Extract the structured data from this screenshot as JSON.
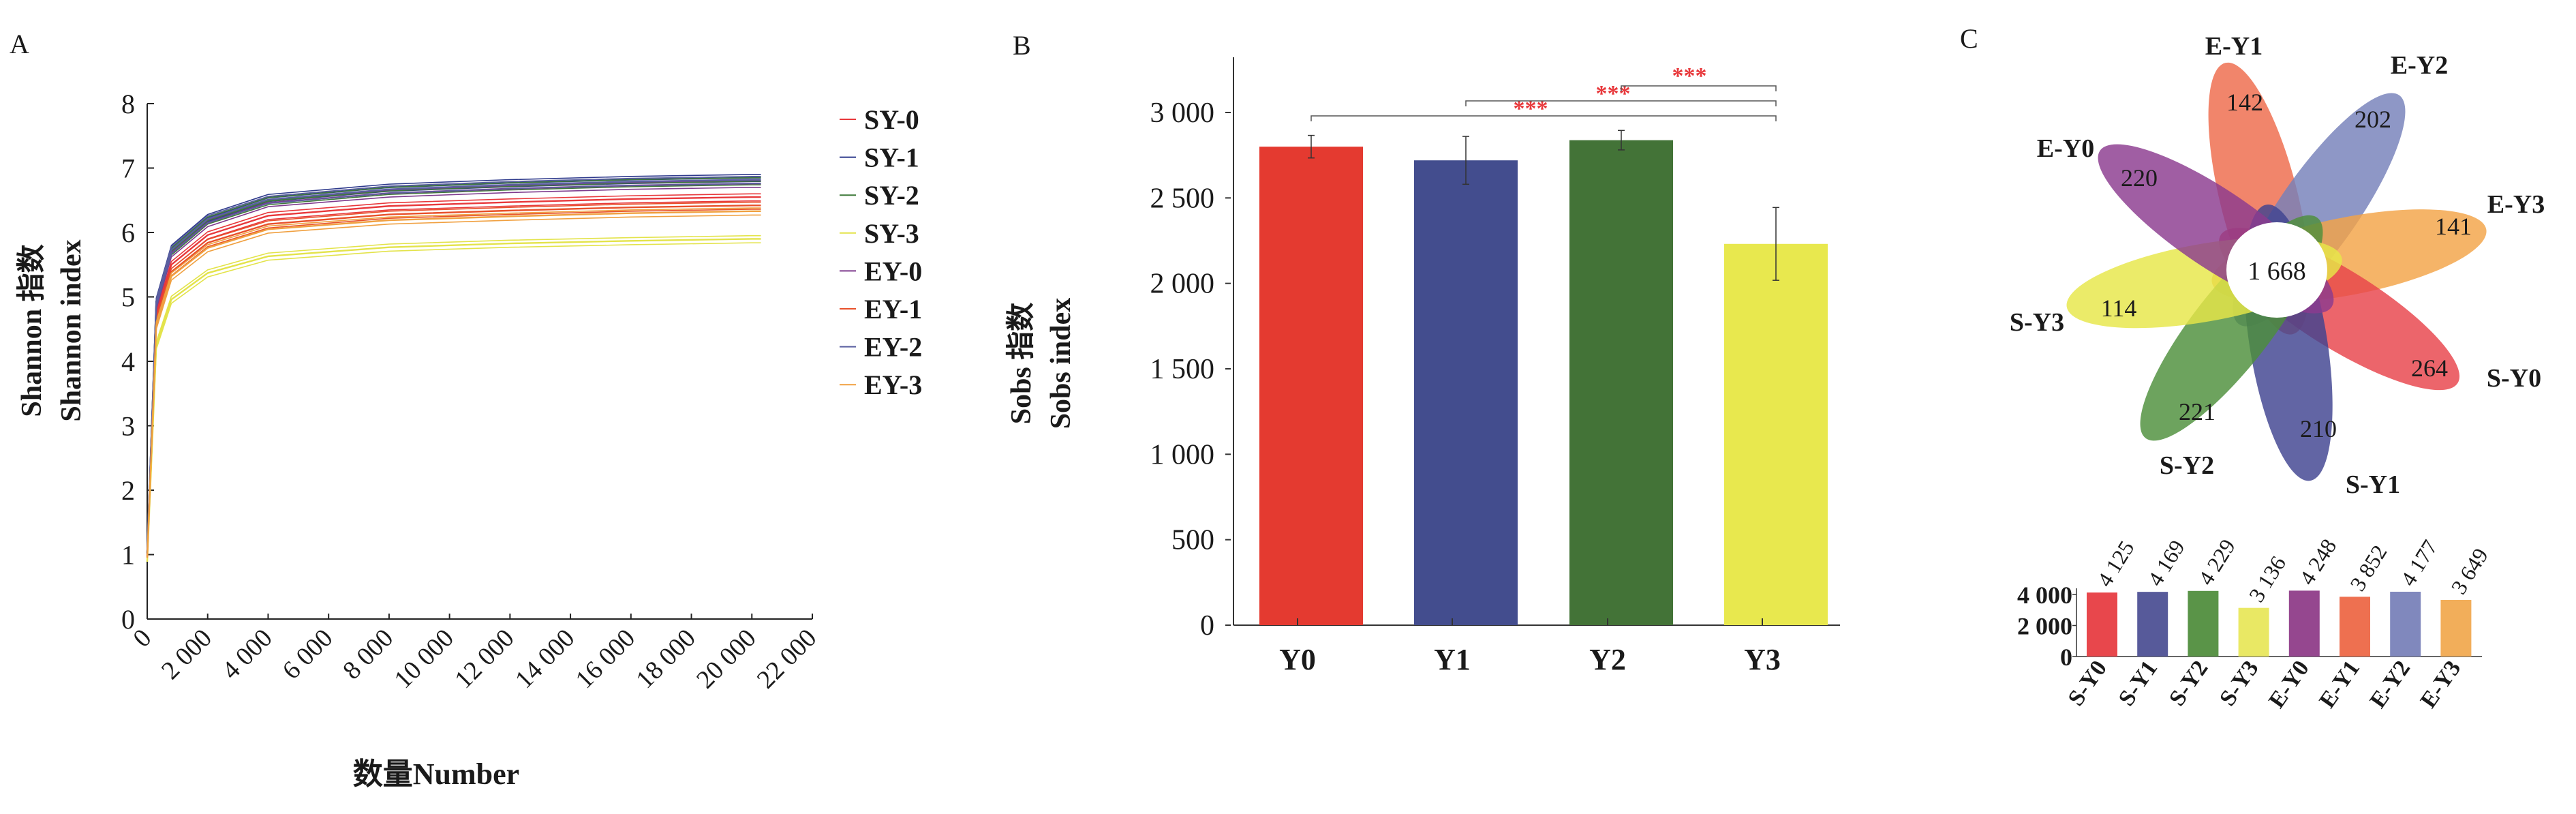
{
  "panel_labels": {
    "a": "A",
    "b": "B",
    "c": "C"
  },
  "chart_data": [
    {
      "type": "line",
      "panel": "A",
      "ylabel_cn": "Shannon 指数",
      "ylabel": "Shannon index",
      "xlabel": "数量Number",
      "xlim": [
        0,
        22000
      ],
      "ylim": [
        0,
        8
      ],
      "x_ticks": [
        0,
        2000,
        4000,
        6000,
        8000,
        10000,
        12000,
        14000,
        16000,
        18000,
        20000,
        22000
      ],
      "x_tick_labels": [
        "0",
        "2 000",
        "4 000",
        "6 000",
        "8 000",
        "10 000",
        "12 000",
        "14 000",
        "16 000",
        "18 000",
        "20 000",
        "22 000"
      ],
      "y_tick_labels": [
        "0",
        "1",
        "2",
        "3",
        "4",
        "5",
        "6",
        "7",
        "8"
      ],
      "legend_position": "right",
      "x": [
        0,
        300,
        800,
        2000,
        4000,
        8000,
        12000,
        16000,
        20000,
        20300
      ],
      "series": [
        {
          "name": "SY-0",
          "color": "#e8383b",
          "values": [
            0.98,
            4.72,
            5.5,
            5.96,
            6.26,
            6.41,
            6.47,
            6.52,
            6.55,
            6.55
          ]
        },
        {
          "name": "SY-1",
          "color": "#2e3a8c",
          "values": [
            1.03,
            4.93,
            5.75,
            6.23,
            6.54,
            6.7,
            6.77,
            6.82,
            6.85,
            6.85
          ]
        },
        {
          "name": "SY-2",
          "color": "#3f7a3a",
          "values": [
            1.02,
            4.9,
            5.71,
            6.19,
            6.49,
            6.65,
            6.72,
            6.77,
            6.8,
            6.8
          ]
        },
        {
          "name": "SY-3",
          "color": "#e3e34a",
          "values": [
            0.89,
            4.25,
            4.96,
            5.37,
            5.63,
            5.77,
            5.83,
            5.87,
            5.9,
            5.9
          ]
        },
        {
          "name": "EY-0",
          "color": "#7e3b8e",
          "values": [
            1.01,
            4.87,
            5.68,
            6.15,
            6.46,
            6.61,
            6.68,
            6.73,
            6.76,
            6.76
          ]
        },
        {
          "name": "EY-1",
          "color": "#e8502a",
          "values": [
            0.96,
            4.62,
            5.39,
            5.84,
            6.13,
            6.28,
            6.34,
            6.39,
            6.42,
            6.42
          ]
        },
        {
          "name": "EY-2",
          "color": "#5a5fa0",
          "values": [
            1.02,
            4.91,
            5.73,
            6.21,
            6.51,
            6.67,
            6.74,
            6.79,
            6.82,
            6.82
          ]
        },
        {
          "name": "EY-3",
          "color": "#f0a040",
          "values": [
            0.95,
            4.56,
            5.32,
            5.76,
            6.05,
            6.19,
            6.25,
            6.3,
            6.33,
            6.33
          ]
        }
      ]
    },
    {
      "type": "bar",
      "panel": "B",
      "ylabel_cn": "Sobs 指数",
      "ylabel": "Sobs index",
      "categories": [
        "Y0",
        "Y1",
        "Y2",
        "Y3"
      ],
      "values": [
        2800,
        2720,
        2838,
        2231
      ],
      "errors": [
        66,
        140,
        57,
        213
      ],
      "colors": [
        "#e43a30",
        "#434d8e",
        "#437337",
        "#e8e84e"
      ],
      "ylim": [
        0,
        3300
      ],
      "y_ticks": [
        0,
        500,
        1000,
        1500,
        2000,
        2500,
        3000
      ],
      "y_tick_labels": [
        "0",
        "500",
        "1 000",
        "1 500",
        "2 000",
        "2 500",
        "3 000"
      ],
      "significance": [
        {
          "from": "Y0",
          "to": "Y3",
          "label": "***"
        },
        {
          "from": "Y1",
          "to": "Y3",
          "label": "***"
        },
        {
          "from": "Y2",
          "to": "Y3",
          "label": "***"
        }
      ],
      "significance_color": "#e8383b"
    },
    {
      "type": "venn-flower",
      "panel": "C",
      "core_value": "1 668",
      "petals": [
        {
          "name": "E-Y1",
          "unique": "142",
          "color": "#ee6a4a"
        },
        {
          "name": "E-Y2",
          "unique": "202",
          "color": "#7580ba"
        },
        {
          "name": "E-Y3",
          "unique": "141",
          "color": "#f3a347"
        },
        {
          "name": "S-Y0",
          "unique": "264",
          "color": "#e8434a"
        },
        {
          "name": "S-Y1",
          "unique": "210",
          "color": "#3f4390"
        },
        {
          "name": "S-Y2",
          "unique": "221",
          "color": "#4d8f3a"
        },
        {
          "name": "S-Y3",
          "unique": "114",
          "color": "#e6e648"
        },
        {
          "name": "E-Y0",
          "unique": "220",
          "color": "#8b3a8f"
        }
      ]
    },
    {
      "type": "bar",
      "panel": "C-totals",
      "categories": [
        "S-Y0",
        "S-Y1",
        "S-Y2",
        "S-Y3",
        "E-Y0",
        "E-Y1",
        "E-Y2",
        "E-Y3"
      ],
      "values": [
        4125,
        4169,
        4229,
        3136,
        4248,
        3852,
        4177,
        3649
      ],
      "value_labels": [
        "4 125",
        "4 169",
        "4 229",
        "3 136",
        "4 248",
        "3 852",
        "4 177",
        "3 649"
      ],
      "colors": [
        "#e8474c",
        "#575a9a",
        "#5a9448",
        "#e9e864",
        "#95478f",
        "#ee7050",
        "#8088bd",
        "#f2ae5a"
      ],
      "ylim": [
        0,
        4400
      ],
      "y_ticks": [
        0,
        2000,
        4000
      ],
      "y_tick_labels": [
        "0",
        "2 000",
        "4 000"
      ]
    }
  ]
}
